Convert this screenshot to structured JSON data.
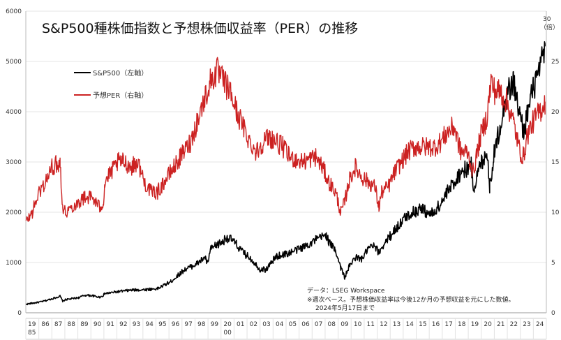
{
  "chart_data": {
    "type": "line",
    "title": "S&P500種株価指数と予想株価収益率（PER）の推移",
    "y_left_ticks": [
      "0",
      "1000",
      "2000",
      "3000",
      "4000",
      "5000",
      "6000"
    ],
    "y_left_range": [
      0,
      6000
    ],
    "y_right_ticks": [
      "0",
      "5",
      "10",
      "15",
      "20",
      "25",
      "30"
    ],
    "y_right_range": [
      0,
      30
    ],
    "y_right_unit": "（倍）",
    "x_ticks": [
      "19 85",
      "86",
      "87",
      "88",
      "89",
      "90",
      "91",
      "92",
      "93",
      "94",
      "95",
      "96",
      "97",
      "98",
      "99",
      "20 00",
      "01",
      "02",
      "03",
      "04",
      "05",
      "06",
      "07",
      "08",
      "09",
      "10",
      "11",
      "12",
      "13",
      "14",
      "15",
      "16",
      "17",
      "18",
      "19",
      "20",
      "21",
      "22",
      "23",
      "24"
    ],
    "legend_placement": "top-left",
    "series": [
      {
        "name": "S&P500（左軸）",
        "color": "#000000",
        "axis": "left",
        "x": [
          1985,
          1985.5,
          1986,
          1986.5,
          1987,
          1987.6,
          1987.8,
          1988,
          1989,
          1989.5,
          1990,
          1990.6,
          1990.8,
          1991,
          1992,
          1993,
          1994,
          1995,
          1996,
          1997,
          1997.8,
          1998,
          1998.6,
          1998.8,
          1999,
          1999.5,
          2000,
          2000.2,
          2000.7,
          2001,
          2001.3,
          2001.7,
          2002,
          2002.5,
          2002.8,
          2003,
          2003.2,
          2004,
          2005,
          2006,
          2007,
          2007.8,
          2008,
          2008.5,
          2008.9,
          2009.2,
          2009.5,
          2010,
          2010.5,
          2011,
          2011.4,
          2011.8,
          2012,
          2013,
          2014,
          2015,
          2015.7,
          2016,
          2016.5,
          2017,
          2018,
          2018.8,
          2018.99,
          2019.5,
          2020,
          2020.2,
          2020.5,
          2021,
          2021.5,
          2022,
          2022.5,
          2022.8,
          2023,
          2023.5,
          2024,
          2024.4
        ],
        "values": [
          170,
          190,
          210,
          240,
          280,
          330,
          230,
          260,
          300,
          350,
          340,
          310,
          330,
          380,
          420,
          450,
          460,
          480,
          620,
          850,
          950,
          980,
          1100,
          970,
          1250,
          1350,
          1420,
          1500,
          1440,
          1350,
          1250,
          1150,
          1100,
          950,
          850,
          870,
          850,
          1120,
          1190,
          1300,
          1450,
          1550,
          1400,
          1250,
          900,
          700,
          900,
          1100,
          1070,
          1280,
          1330,
          1200,
          1300,
          1650,
          1950,
          2080,
          1950,
          2010,
          2170,
          2400,
          2800,
          2920,
          2480,
          2950,
          3230,
          2500,
          3100,
          3750,
          4350,
          4600,
          3900,
          3600,
          3900,
          4450,
          4800,
          5300
        ]
      },
      {
        "name": "予想PER（右軸）",
        "color": "#cc2222",
        "axis": "right",
        "x": [
          1985,
          1985.5,
          1986,
          1986.5,
          1987,
          1987.6,
          1987.8,
          1988,
          1988.5,
          1989,
          1989.5,
          1990,
          1990.6,
          1990.9,
          1991,
          1991.5,
          1992,
          1992.5,
          1993,
          1993.5,
          1994,
          1994.5,
          1995,
          1996,
          1997,
          1997.5,
          1998,
          1998.5,
          1999,
          1999.5,
          2000,
          2000.5,
          2001,
          2001.5,
          2002,
          2002.5,
          2003,
          2003.5,
          2004,
          2004.5,
          2005,
          2006,
          2007,
          2007.5,
          2008,
          2008.5,
          2008.9,
          2009.2,
          2009.5,
          2010,
          2010.5,
          2011,
          2011.5,
          2011.8,
          2012,
          2012.5,
          2013,
          2014,
          2014.5,
          2015,
          2016,
          2016.5,
          2017,
          2017.5,
          2018,
          2018.5,
          2018.95,
          2019.5,
          2020,
          2020.3,
          2020.6,
          2021,
          2021.5,
          2022,
          2022.5,
          2022.8,
          2023,
          2023.5,
          2024,
          2024.4
        ],
        "values": [
          9,
          10,
          12,
          13,
          14.5,
          15,
          10.5,
          10,
          10.5,
          11,
          11.5,
          11.5,
          10.5,
          11,
          13,
          14,
          15,
          15,
          14.5,
          15,
          13,
          12,
          12,
          14,
          16,
          17,
          19,
          21,
          23,
          24,
          23,
          22,
          20,
          18.5,
          17,
          16,
          17,
          17.5,
          17,
          16.5,
          15.5,
          15,
          15.5,
          14.5,
          13,
          12,
          10,
          11,
          13,
          14.5,
          13.5,
          13,
          12.5,
          10.5,
          12,
          12.5,
          14,
          16,
          16.5,
          16.5,
          16.5,
          17,
          18,
          18.5,
          16,
          16,
          14,
          17.5,
          19.5,
          23,
          22,
          22,
          21,
          19,
          16,
          15.5,
          17.5,
          19,
          20,
          21
        ]
      }
    ],
    "notes": [
      "データ：LSEG Workspace",
      "※週次ベース。予想株価収益率は今後12か月の予想収益を元にした数値。",
      "2024年5月17日まで"
    ]
  }
}
